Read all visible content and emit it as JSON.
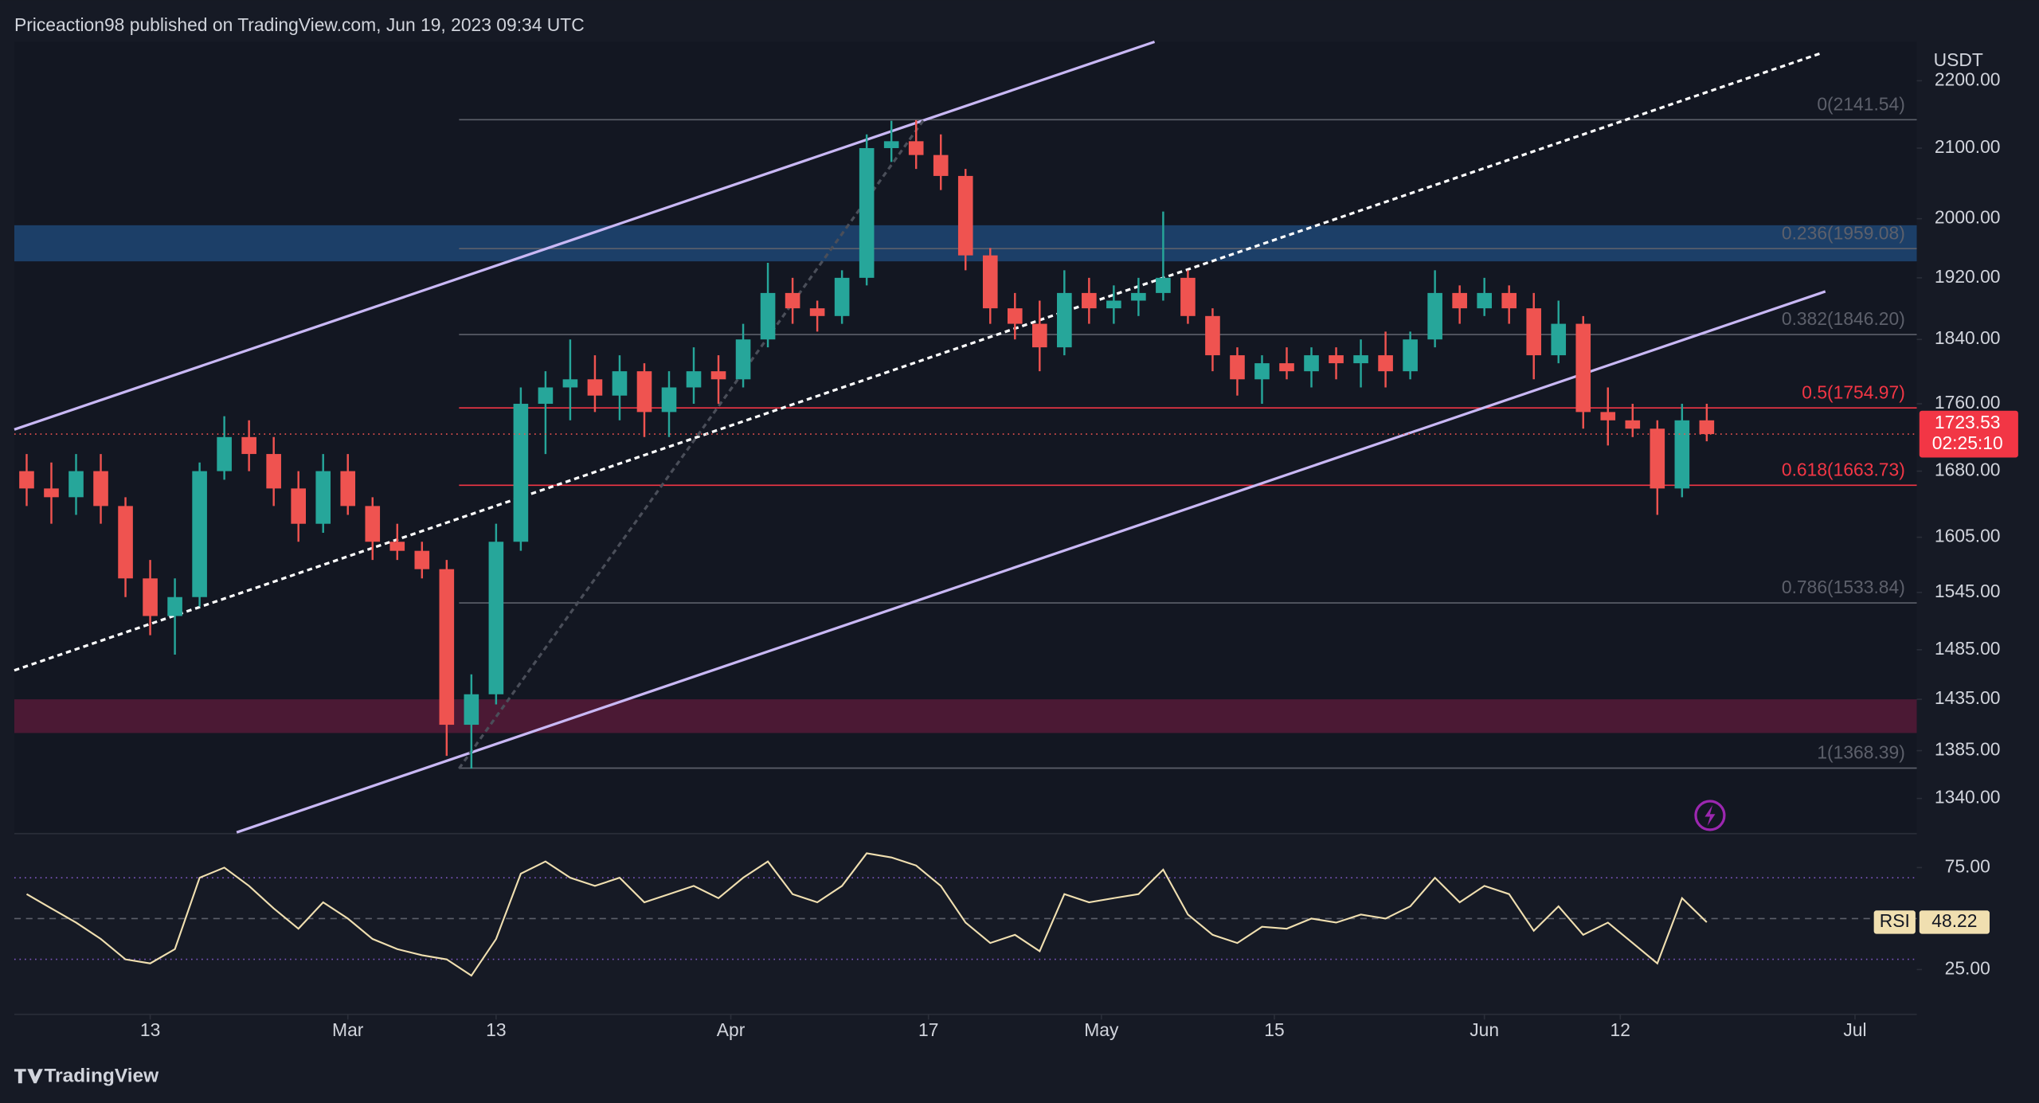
{
  "header": "Priceaction98 published on TradingView.com, Jun 19, 2023 09:34 UTC",
  "footer": "TradingView",
  "chart_data": {
    "type": "candlestick",
    "unit": "USDT",
    "log": true,
    "background": "#161a25",
    "up_color": "#26a69a",
    "down_color": "#ef5350",
    "xlim": [
      0,
      154
    ],
    "ylim": [
      1309,
      2260
    ],
    "xticks": [
      {
        "value": 11,
        "label": "13"
      },
      {
        "value": 27,
        "label": "Mar"
      },
      {
        "value": 39,
        "label": "13"
      },
      {
        "value": 58,
        "label": "Apr"
      },
      {
        "value": 74,
        "label": "17"
      },
      {
        "value": 88,
        "label": "May"
      },
      {
        "value": 102,
        "label": "15"
      },
      {
        "value": 119,
        "label": "Jun"
      },
      {
        "value": 130,
        "label": "12"
      },
      {
        "value": 149,
        "label": "Jul"
      }
    ],
    "yticks": [
      {
        "value": 2200,
        "label": "2200.00"
      },
      {
        "value": 2100,
        "label": "2100.00"
      },
      {
        "value": 2000,
        "label": "2000.00"
      },
      {
        "value": 1920,
        "label": "1920.00"
      },
      {
        "value": 1840,
        "label": "1840.00"
      },
      {
        "value": 1760,
        "label": "1760.00"
      },
      {
        "value": 1680,
        "label": "1680.00"
      },
      {
        "value": 1605,
        "label": "1605.00"
      },
      {
        "value": 1545,
        "label": "1545.00"
      },
      {
        "value": 1485,
        "label": "1485.00"
      },
      {
        "value": 1435,
        "label": "1435.00"
      },
      {
        "value": 1385,
        "label": "1385.00"
      },
      {
        "value": 1340,
        "label": "1340.00"
      }
    ],
    "x": [
      1,
      3,
      5,
      7,
      9,
      11,
      13,
      15,
      17,
      19,
      21,
      23,
      25,
      27,
      29,
      31,
      33,
      35,
      37,
      39,
      41,
      43,
      45,
      47,
      49,
      51,
      53,
      55,
      57,
      59,
      61,
      63,
      65,
      67,
      69,
      71,
      73,
      75,
      77,
      79,
      81,
      83,
      85,
      87,
      89,
      91,
      93,
      95,
      97,
      99,
      101,
      103,
      105,
      107,
      109,
      111,
      113,
      115,
      117,
      119,
      121,
      123,
      125,
      127,
      129,
      131,
      133,
      135,
      137
    ],
    "ohlc": [
      [
        1680,
        1700,
        1640,
        1660
      ],
      [
        1660,
        1690,
        1620,
        1650
      ],
      [
        1650,
        1700,
        1630,
        1680
      ],
      [
        1680,
        1700,
        1620,
        1640
      ],
      [
        1640,
        1650,
        1540,
        1560
      ],
      [
        1560,
        1580,
        1500,
        1520
      ],
      [
        1520,
        1560,
        1480,
        1540
      ],
      [
        1540,
        1690,
        1530,
        1680
      ],
      [
        1680,
        1745,
        1670,
        1720
      ],
      [
        1720,
        1740,
        1680,
        1700
      ],
      [
        1700,
        1720,
        1640,
        1660
      ],
      [
        1660,
        1680,
        1600,
        1620
      ],
      [
        1620,
        1700,
        1610,
        1680
      ],
      [
        1680,
        1700,
        1630,
        1640
      ],
      [
        1640,
        1650,
        1580,
        1600
      ],
      [
        1600,
        1620,
        1580,
        1590
      ],
      [
        1590,
        1600,
        1560,
        1570
      ],
      [
        1570,
        1580,
        1380,
        1410
      ],
      [
        1410,
        1460,
        1368,
        1440
      ],
      [
        1440,
        1620,
        1430,
        1600
      ],
      [
        1600,
        1780,
        1590,
        1760
      ],
      [
        1760,
        1800,
        1700,
        1780
      ],
      [
        1780,
        1840,
        1740,
        1790
      ],
      [
        1790,
        1820,
        1750,
        1770
      ],
      [
        1770,
        1820,
        1740,
        1800
      ],
      [
        1800,
        1810,
        1720,
        1750
      ],
      [
        1750,
        1800,
        1720,
        1780
      ],
      [
        1780,
        1830,
        1760,
        1800
      ],
      [
        1800,
        1820,
        1760,
        1790
      ],
      [
        1790,
        1860,
        1780,
        1840
      ],
      [
        1840,
        1940,
        1830,
        1900
      ],
      [
        1900,
        1920,
        1860,
        1880
      ],
      [
        1880,
        1890,
        1850,
        1870
      ],
      [
        1870,
        1930,
        1860,
        1920
      ],
      [
        1920,
        2120,
        1910,
        2100
      ],
      [
        2100,
        2140,
        2080,
        2110
      ],
      [
        2110,
        2141,
        2070,
        2090
      ],
      [
        2090,
        2120,
        2040,
        2060
      ],
      [
        2060,
        2070,
        1930,
        1950
      ],
      [
        1950,
        1960,
        1860,
        1880
      ],
      [
        1880,
        1900,
        1840,
        1860
      ],
      [
        1860,
        1890,
        1800,
        1830
      ],
      [
        1830,
        1930,
        1820,
        1900
      ],
      [
        1900,
        1920,
        1860,
        1880
      ],
      [
        1880,
        1910,
        1860,
        1890
      ],
      [
        1890,
        1920,
        1870,
        1900
      ],
      [
        1900,
        2010,
        1890,
        1920
      ],
      [
        1920,
        1930,
        1860,
        1870
      ],
      [
        1870,
        1880,
        1800,
        1820
      ],
      [
        1820,
        1830,
        1770,
        1790
      ],
      [
        1790,
        1820,
        1760,
        1810
      ],
      [
        1810,
        1830,
        1790,
        1800
      ],
      [
        1800,
        1830,
        1780,
        1820
      ],
      [
        1820,
        1830,
        1790,
        1810
      ],
      [
        1810,
        1840,
        1780,
        1820
      ],
      [
        1820,
        1850,
        1780,
        1800
      ],
      [
        1800,
        1850,
        1790,
        1840
      ],
      [
        1840,
        1930,
        1830,
        1900
      ],
      [
        1900,
        1910,
        1860,
        1880
      ],
      [
        1880,
        1920,
        1870,
        1900
      ],
      [
        1900,
        1910,
        1860,
        1880
      ],
      [
        1880,
        1900,
        1790,
        1820
      ],
      [
        1820,
        1890,
        1810,
        1860
      ],
      [
        1860,
        1870,
        1730,
        1750
      ],
      [
        1750,
        1780,
        1710,
        1740
      ],
      [
        1740,
        1760,
        1720,
        1730
      ],
      [
        1730,
        1740,
        1630,
        1660
      ],
      [
        1660,
        1760,
        1650,
        1740
      ],
      [
        1740,
        1760,
        1715,
        1723.53
      ]
    ],
    "countdown": "02:25:10",
    "zones": [
      {
        "from": 1942,
        "to": 1991,
        "color": "#1f4a7a"
      },
      {
        "from": 1402,
        "to": 1435,
        "color": "#5a1a3a"
      }
    ],
    "fib_levels": [
      {
        "value": 2141.54,
        "label": "0(2141.54)",
        "color": "#5d606b"
      },
      {
        "value": 1959.08,
        "label": "0.236(1959.08)",
        "color": "#5d606b"
      },
      {
        "value": 1846.2,
        "label": "0.382(1846.20)",
        "color": "#5d606b"
      },
      {
        "value": 1754.97,
        "label": "0.5(1754.97)",
        "color": "#f23645"
      },
      {
        "value": 1663.73,
        "label": "0.618(1663.73)",
        "color": "#f23645"
      },
      {
        "value": 1533.84,
        "label": "0.786(1533.84)",
        "color": "#5d606b"
      },
      {
        "value": 1368.39,
        "label": "1(1368.39)",
        "color": "#5d606b"
      }
    ],
    "trendlines": [
      {
        "points": [
          [
            0,
            1729
          ],
          [
            92.3,
            2260
          ]
        ],
        "color": "#c9b8f5",
        "dashed": false
      },
      {
        "points": [
          [
            18,
            1309
          ],
          [
            146.6,
            1902
          ]
        ],
        "color": "#c9b8f5",
        "dashed": false
      },
      {
        "points": [
          [
            0,
            1464
          ],
          [
            146.2,
            2242
          ]
        ],
        "color": "#ffffff",
        "dashed": true
      },
      {
        "points": [
          [
            36,
            1368
          ],
          [
            73.6,
            2141
          ]
        ],
        "color": "#4a4e59",
        "dashed": true
      }
    ],
    "rsi": {
      "name": "RSI",
      "color": "#f0dfb0",
      "ylim": [
        3,
        91
      ],
      "levels": [
        70,
        50,
        30
      ],
      "yticks": [
        {
          "value": 75,
          "label": "75.00"
        },
        {
          "value": 25,
          "label": "25.00"
        }
      ],
      "values": [
        62,
        55,
        48,
        40,
        30,
        28,
        35,
        70,
        75,
        66,
        55,
        45,
        58,
        50,
        40,
        35,
        32,
        30,
        22,
        40,
        72,
        78,
        70,
        66,
        70,
        58,
        62,
        66,
        60,
        70,
        78,
        62,
        58,
        66,
        82,
        80,
        76,
        66,
        48,
        38,
        42,
        34,
        62,
        58,
        60,
        62,
        74,
        52,
        42,
        38,
        46,
        45,
        50,
        48,
        52,
        50,
        56,
        70,
        58,
        66,
        62,
        44,
        56,
        42,
        48,
        38,
        28,
        60,
        48.22
      ]
    }
  }
}
